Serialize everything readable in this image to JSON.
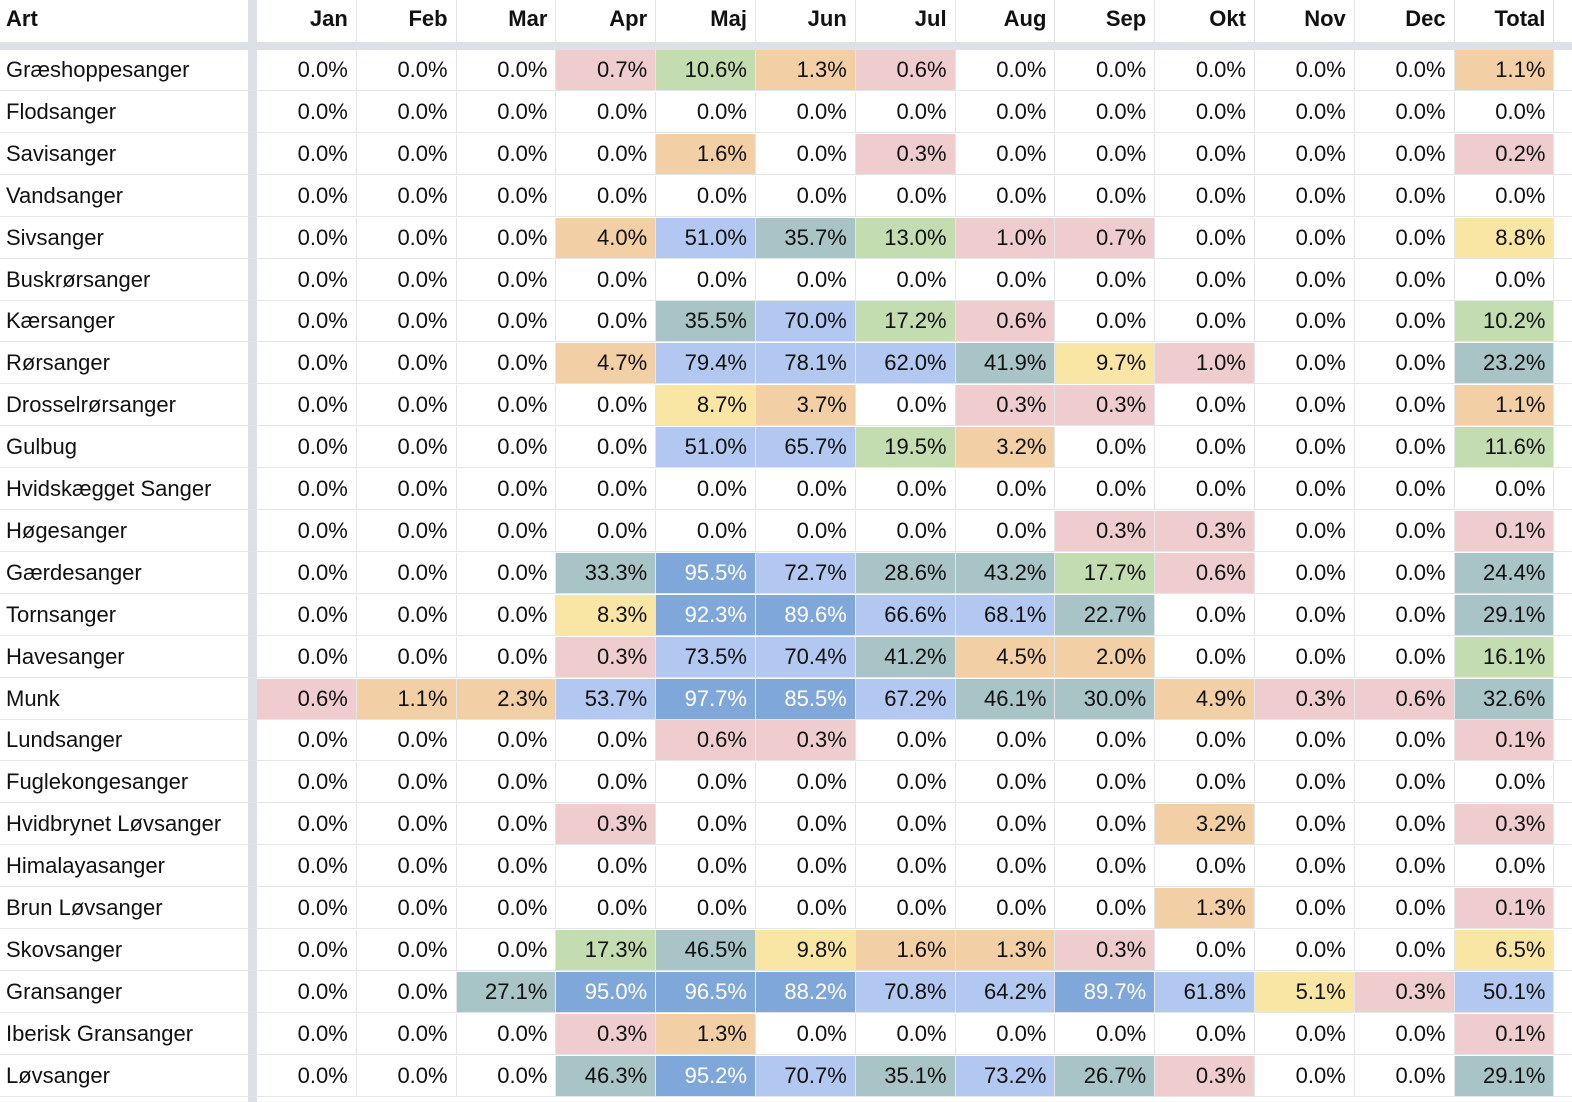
{
  "header": {
    "art": "Art",
    "months": [
      "Jan",
      "Feb",
      "Mar",
      "Apr",
      "Maj",
      "Jun",
      "Jul",
      "Aug",
      "Sep",
      "Okt",
      "Nov",
      "Dec",
      "Total"
    ]
  },
  "colors": {
    "c0": "#ffffff",
    "c1": "#efcdcf",
    "c2": "#f3cfa6",
    "c3": "#f9e6a4",
    "c4": "#c3dcb0",
    "c5": "#a9c4c6",
    "c6": "#b2c8f0",
    "c7": "#7fa7d9",
    "sidebar": "#dde1e7"
  },
  "rows": [
    {
      "name": "Græshoppesanger",
      "values": [
        "0.0%",
        "0.0%",
        "0.0%",
        "0.7%",
        "10.6%",
        "1.3%",
        "0.6%",
        "0.0%",
        "0.0%",
        "0.0%",
        "0.0%",
        "0.0%",
        "1.1%"
      ],
      "classes": [
        0,
        0,
        0,
        1,
        4,
        2,
        1,
        0,
        0,
        0,
        0,
        0,
        2
      ]
    },
    {
      "name": "Flodsanger",
      "values": [
        "0.0%",
        "0.0%",
        "0.0%",
        "0.0%",
        "0.0%",
        "0.0%",
        "0.0%",
        "0.0%",
        "0.0%",
        "0.0%",
        "0.0%",
        "0.0%",
        "0.0%"
      ],
      "classes": [
        0,
        0,
        0,
        0,
        0,
        0,
        0,
        0,
        0,
        0,
        0,
        0,
        0
      ]
    },
    {
      "name": "Savisanger",
      "values": [
        "0.0%",
        "0.0%",
        "0.0%",
        "0.0%",
        "1.6%",
        "0.0%",
        "0.3%",
        "0.0%",
        "0.0%",
        "0.0%",
        "0.0%",
        "0.0%",
        "0.2%"
      ],
      "classes": [
        0,
        0,
        0,
        0,
        2,
        0,
        1,
        0,
        0,
        0,
        0,
        0,
        1
      ]
    },
    {
      "name": "Vandsanger",
      "values": [
        "0.0%",
        "0.0%",
        "0.0%",
        "0.0%",
        "0.0%",
        "0.0%",
        "0.0%",
        "0.0%",
        "0.0%",
        "0.0%",
        "0.0%",
        "0.0%",
        "0.0%"
      ],
      "classes": [
        0,
        0,
        0,
        0,
        0,
        0,
        0,
        0,
        0,
        0,
        0,
        0,
        0
      ]
    },
    {
      "name": "Sivsanger",
      "values": [
        "0.0%",
        "0.0%",
        "0.0%",
        "4.0%",
        "51.0%",
        "35.7%",
        "13.0%",
        "1.0%",
        "0.7%",
        "0.0%",
        "0.0%",
        "0.0%",
        "8.8%"
      ],
      "classes": [
        0,
        0,
        0,
        2,
        6,
        5,
        4,
        1,
        1,
        0,
        0,
        0,
        3
      ]
    },
    {
      "name": "Buskrørsanger",
      "values": [
        "0.0%",
        "0.0%",
        "0.0%",
        "0.0%",
        "0.0%",
        "0.0%",
        "0.0%",
        "0.0%",
        "0.0%",
        "0.0%",
        "0.0%",
        "0.0%",
        "0.0%"
      ],
      "classes": [
        0,
        0,
        0,
        0,
        0,
        0,
        0,
        0,
        0,
        0,
        0,
        0,
        0
      ]
    },
    {
      "name": "Kærsanger",
      "values": [
        "0.0%",
        "0.0%",
        "0.0%",
        "0.0%",
        "35.5%",
        "70.0%",
        "17.2%",
        "0.6%",
        "0.0%",
        "0.0%",
        "0.0%",
        "0.0%",
        "10.2%"
      ],
      "classes": [
        0,
        0,
        0,
        0,
        5,
        6,
        4,
        1,
        0,
        0,
        0,
        0,
        4
      ]
    },
    {
      "name": "Rørsanger",
      "values": [
        "0.0%",
        "0.0%",
        "0.0%",
        "4.7%",
        "79.4%",
        "78.1%",
        "62.0%",
        "41.9%",
        "9.7%",
        "1.0%",
        "0.0%",
        "0.0%",
        "23.2%"
      ],
      "classes": [
        0,
        0,
        0,
        2,
        6,
        6,
        6,
        5,
        3,
        1,
        0,
        0,
        5
      ]
    },
    {
      "name": "Drosselrørsanger",
      "values": [
        "0.0%",
        "0.0%",
        "0.0%",
        "0.0%",
        "8.7%",
        "3.7%",
        "0.0%",
        "0.3%",
        "0.3%",
        "0.0%",
        "0.0%",
        "0.0%",
        "1.1%"
      ],
      "classes": [
        0,
        0,
        0,
        0,
        3,
        2,
        0,
        1,
        1,
        0,
        0,
        0,
        2
      ]
    },
    {
      "name": "Gulbug",
      "values": [
        "0.0%",
        "0.0%",
        "0.0%",
        "0.0%",
        "51.0%",
        "65.7%",
        "19.5%",
        "3.2%",
        "0.0%",
        "0.0%",
        "0.0%",
        "0.0%",
        "11.6%"
      ],
      "classes": [
        0,
        0,
        0,
        0,
        6,
        6,
        4,
        2,
        0,
        0,
        0,
        0,
        4
      ]
    },
    {
      "name": "Hvidskægget Sanger",
      "values": [
        "0.0%",
        "0.0%",
        "0.0%",
        "0.0%",
        "0.0%",
        "0.0%",
        "0.0%",
        "0.0%",
        "0.0%",
        "0.0%",
        "0.0%",
        "0.0%",
        "0.0%"
      ],
      "classes": [
        0,
        0,
        0,
        0,
        0,
        0,
        0,
        0,
        0,
        0,
        0,
        0,
        0
      ]
    },
    {
      "name": "Høgesanger",
      "values": [
        "0.0%",
        "0.0%",
        "0.0%",
        "0.0%",
        "0.0%",
        "0.0%",
        "0.0%",
        "0.0%",
        "0.3%",
        "0.3%",
        "0.0%",
        "0.0%",
        "0.1%"
      ],
      "classes": [
        0,
        0,
        0,
        0,
        0,
        0,
        0,
        0,
        1,
        1,
        0,
        0,
        1
      ]
    },
    {
      "name": "Gærdesanger",
      "values": [
        "0.0%",
        "0.0%",
        "0.0%",
        "33.3%",
        "95.5%",
        "72.7%",
        "28.6%",
        "43.2%",
        "17.7%",
        "0.6%",
        "0.0%",
        "0.0%",
        "24.4%"
      ],
      "classes": [
        0,
        0,
        0,
        5,
        7,
        6,
        5,
        5,
        4,
        1,
        0,
        0,
        5
      ]
    },
    {
      "name": "Tornsanger",
      "values": [
        "0.0%",
        "0.0%",
        "0.0%",
        "8.3%",
        "92.3%",
        "89.6%",
        "66.6%",
        "68.1%",
        "22.7%",
        "0.0%",
        "0.0%",
        "0.0%",
        "29.1%"
      ],
      "classes": [
        0,
        0,
        0,
        3,
        7,
        7,
        6,
        6,
        5,
        0,
        0,
        0,
        5
      ]
    },
    {
      "name": "Havesanger",
      "values": [
        "0.0%",
        "0.0%",
        "0.0%",
        "0.3%",
        "73.5%",
        "70.4%",
        "41.2%",
        "4.5%",
        "2.0%",
        "0.0%",
        "0.0%",
        "0.0%",
        "16.1%"
      ],
      "classes": [
        0,
        0,
        0,
        1,
        6,
        6,
        5,
        2,
        2,
        0,
        0,
        0,
        4
      ]
    },
    {
      "name": "Munk",
      "values": [
        "0.6%",
        "1.1%",
        "2.3%",
        "53.7%",
        "97.7%",
        "85.5%",
        "67.2%",
        "46.1%",
        "30.0%",
        "4.9%",
        "0.3%",
        "0.6%",
        "32.6%"
      ],
      "classes": [
        1,
        2,
        2,
        6,
        7,
        7,
        6,
        5,
        5,
        2,
        1,
        1,
        5
      ]
    },
    {
      "name": "Lundsanger",
      "values": [
        "0.0%",
        "0.0%",
        "0.0%",
        "0.0%",
        "0.6%",
        "0.3%",
        "0.0%",
        "0.0%",
        "0.0%",
        "0.0%",
        "0.0%",
        "0.0%",
        "0.1%"
      ],
      "classes": [
        0,
        0,
        0,
        0,
        1,
        1,
        0,
        0,
        0,
        0,
        0,
        0,
        1
      ]
    },
    {
      "name": "Fuglekongesanger",
      "values": [
        "0.0%",
        "0.0%",
        "0.0%",
        "0.0%",
        "0.0%",
        "0.0%",
        "0.0%",
        "0.0%",
        "0.0%",
        "0.0%",
        "0.0%",
        "0.0%",
        "0.0%"
      ],
      "classes": [
        0,
        0,
        0,
        0,
        0,
        0,
        0,
        0,
        0,
        0,
        0,
        0,
        0
      ]
    },
    {
      "name": "Hvidbrynet Løvsanger",
      "values": [
        "0.0%",
        "0.0%",
        "0.0%",
        "0.3%",
        "0.0%",
        "0.0%",
        "0.0%",
        "0.0%",
        "0.0%",
        "3.2%",
        "0.0%",
        "0.0%",
        "0.3%"
      ],
      "classes": [
        0,
        0,
        0,
        1,
        0,
        0,
        0,
        0,
        0,
        2,
        0,
        0,
        1
      ]
    },
    {
      "name": "Himalayasanger",
      "values": [
        "0.0%",
        "0.0%",
        "0.0%",
        "0.0%",
        "0.0%",
        "0.0%",
        "0.0%",
        "0.0%",
        "0.0%",
        "0.0%",
        "0.0%",
        "0.0%",
        "0.0%"
      ],
      "classes": [
        0,
        0,
        0,
        0,
        0,
        0,
        0,
        0,
        0,
        0,
        0,
        0,
        0
      ]
    },
    {
      "name": "Brun Løvsanger",
      "values": [
        "0.0%",
        "0.0%",
        "0.0%",
        "0.0%",
        "0.0%",
        "0.0%",
        "0.0%",
        "0.0%",
        "0.0%",
        "1.3%",
        "0.0%",
        "0.0%",
        "0.1%"
      ],
      "classes": [
        0,
        0,
        0,
        0,
        0,
        0,
        0,
        0,
        0,
        2,
        0,
        0,
        1
      ]
    },
    {
      "name": "Skovsanger",
      "values": [
        "0.0%",
        "0.0%",
        "0.0%",
        "17.3%",
        "46.5%",
        "9.8%",
        "1.6%",
        "1.3%",
        "0.3%",
        "0.0%",
        "0.0%",
        "0.0%",
        "6.5%"
      ],
      "classes": [
        0,
        0,
        0,
        4,
        5,
        3,
        2,
        2,
        1,
        0,
        0,
        0,
        3
      ]
    },
    {
      "name": "Gransanger",
      "values": [
        "0.0%",
        "0.0%",
        "27.1%",
        "95.0%",
        "96.5%",
        "88.2%",
        "70.8%",
        "64.2%",
        "89.7%",
        "61.8%",
        "5.1%",
        "0.3%",
        "50.1%"
      ],
      "classes": [
        0,
        0,
        5,
        7,
        7,
        7,
        6,
        6,
        7,
        6,
        3,
        1,
        6
      ]
    },
    {
      "name": "Iberisk Gransanger",
      "values": [
        "0.0%",
        "0.0%",
        "0.0%",
        "0.3%",
        "1.3%",
        "0.0%",
        "0.0%",
        "0.0%",
        "0.0%",
        "0.0%",
        "0.0%",
        "0.0%",
        "0.1%"
      ],
      "classes": [
        0,
        0,
        0,
        1,
        2,
        0,
        0,
        0,
        0,
        0,
        0,
        0,
        1
      ]
    },
    {
      "name": "Løvsanger",
      "values": [
        "0.0%",
        "0.0%",
        "0.0%",
        "46.3%",
        "95.2%",
        "70.7%",
        "35.1%",
        "73.2%",
        "26.7%",
        "0.3%",
        "0.0%",
        "0.0%",
        "29.1%"
      ],
      "classes": [
        0,
        0,
        0,
        5,
        7,
        6,
        5,
        6,
        5,
        1,
        0,
        0,
        5
      ]
    }
  ]
}
